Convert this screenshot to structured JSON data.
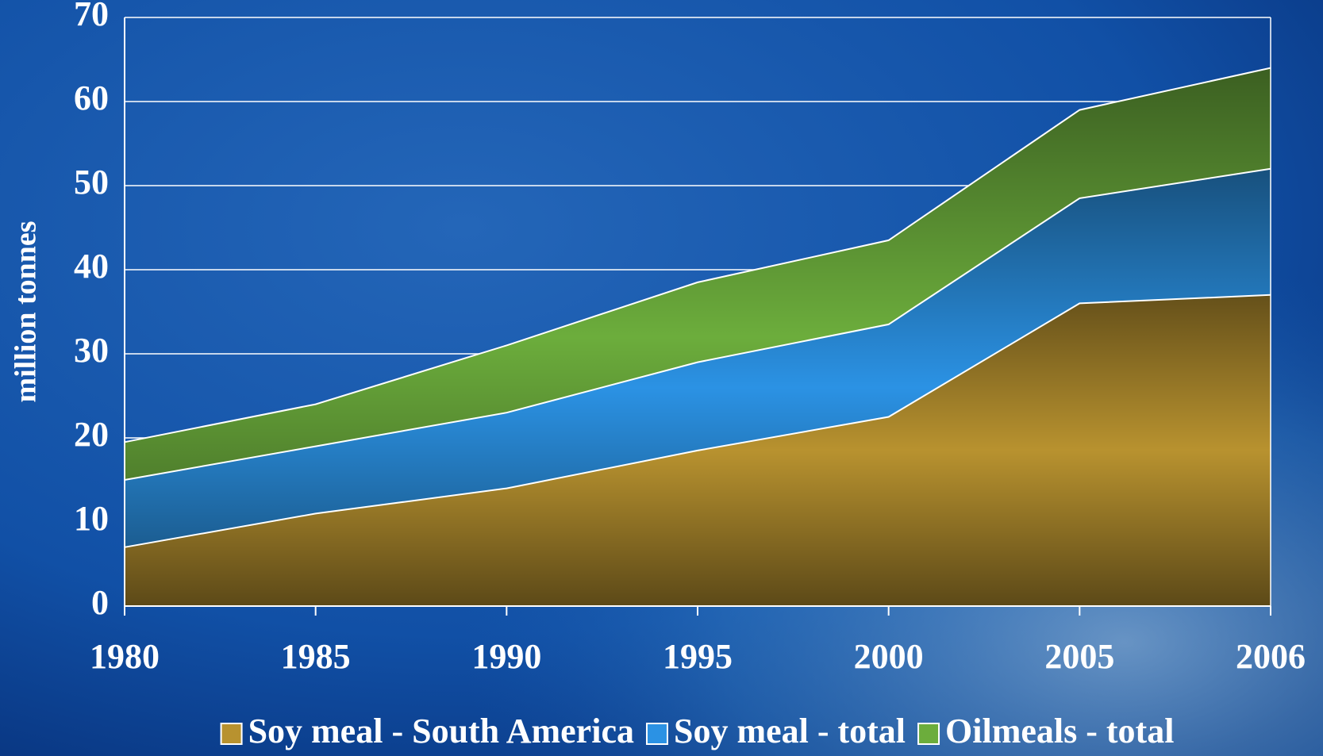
{
  "chart_data": {
    "type": "area",
    "y_label": "million tonnes",
    "categories": [
      "1980",
      "1985",
      "1990",
      "1995",
      "2000",
      "2005",
      "2006"
    ],
    "series": [
      {
        "name": "Soy meal - South America",
        "color": "#b8922f",
        "values": [
          7,
          11,
          14,
          18.5,
          22.5,
          36,
          37
        ]
      },
      {
        "name": "Soy meal - total",
        "color": "#2b92e4",
        "values": [
          15,
          19,
          23,
          29,
          33.5,
          48.5,
          52
        ]
      },
      {
        "name": "Oilmeals - total",
        "color": "#6cad3c",
        "values": [
          19.5,
          24,
          31,
          38.5,
          43.5,
          59,
          64
        ]
      }
    ],
    "ylim": [
      0,
      70
    ],
    "yticks": [
      0,
      10,
      20,
      30,
      40,
      50,
      60,
      70
    ],
    "grid": true,
    "legend": "bottom"
  }
}
